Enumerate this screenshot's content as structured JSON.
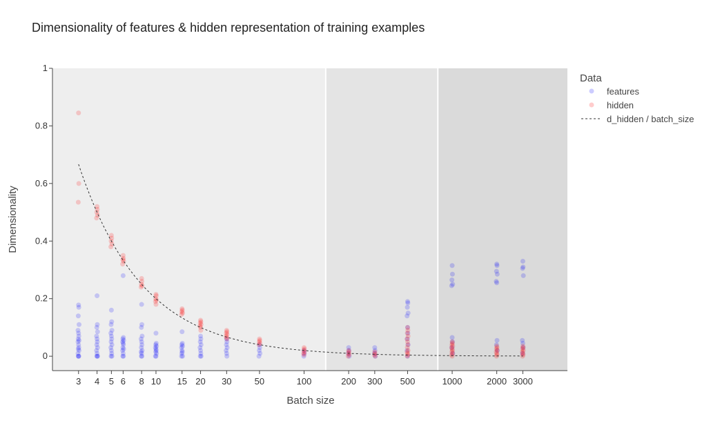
{
  "chart_data": {
    "type": "scatter",
    "title": "Dimensionality of features & hidden representation of training examples",
    "xlabel": "Batch size",
    "ylabel": "Dimensionality",
    "xscale": "log",
    "xlim": [
      2.0,
      6000
    ],
    "ylim": [
      -0.05,
      1.0
    ],
    "xticks": [
      3,
      4,
      5,
      6,
      8,
      10,
      15,
      20,
      30,
      50,
      100,
      200,
      300,
      500,
      1000,
      2000,
      3000
    ],
    "xtick_labels": [
      "3",
      "4",
      "5",
      "6",
      "8",
      "10",
      "15",
      "20",
      "30",
      "50",
      "100",
      "200",
      "300",
      "500",
      "1000",
      "2000",
      "3000"
    ],
    "yticks": [
      0,
      0.2,
      0.4,
      0.6,
      0.8,
      1
    ],
    "ytick_labels": [
      "0",
      "0.2",
      "0.4",
      "0.6",
      "0.8",
      "1"
    ],
    "grid": false,
    "background_regions": [
      {
        "x_from": 2.0,
        "x_to": 140,
        "color": "#eeeeee"
      },
      {
        "x_from": 140,
        "x_to": 800,
        "color": "#e4e4e4"
      },
      {
        "x_from": 800,
        "x_to": 6000,
        "color": "#dadada"
      }
    ],
    "region_boundaries": [
      140,
      800
    ],
    "legend": {
      "title": "Data",
      "placement": "right",
      "entries": [
        "features",
        "hidden",
        "d_hidden / batch_size"
      ]
    },
    "series": [
      {
        "name": "features",
        "mode": "markers",
        "color": "#0000ff",
        "points": [
          {
            "x": 3,
            "y": [
              0.178,
              0.17,
              0.14,
              0.11,
              0.09,
              0.08,
              0.07,
              0.06,
              0.055,
              0.05,
              0.04,
              0.03,
              0.025,
              0.02,
              0.01,
              0.0,
              0.0,
              0.0
            ]
          },
          {
            "x": 4,
            "y": [
              0.21,
              0.11,
              0.1,
              0.085,
              0.07,
              0.06,
              0.05,
              0.04,
              0.03,
              0.02,
              0.01,
              0.0,
              0.0,
              0.0
            ]
          },
          {
            "x": 5,
            "y": [
              0.16,
              0.12,
              0.11,
              0.09,
              0.08,
              0.07,
              0.06,
              0.05,
              0.04,
              0.03,
              0.02,
              0.01,
              0.0,
              0.0
            ]
          },
          {
            "x": 6,
            "y": [
              0.28,
              0.065,
              0.06,
              0.055,
              0.05,
              0.045,
              0.04,
              0.03,
              0.025,
              0.02,
              0.01,
              0.0,
              0.0
            ]
          },
          {
            "x": 8,
            "y": [
              0.18,
              0.11,
              0.1,
              0.07,
              0.06,
              0.05,
              0.04,
              0.03,
              0.02,
              0.015,
              0.01,
              0.0,
              0.0
            ]
          },
          {
            "x": 10,
            "y": [
              0.08,
              0.045,
              0.04,
              0.035,
              0.03,
              0.025,
              0.02,
              0.015,
              0.01,
              0.0,
              0.0
            ]
          },
          {
            "x": 15,
            "y": [
              0.085,
              0.045,
              0.04,
              0.035,
              0.03,
              0.02,
              0.015,
              0.01,
              0.0,
              0.0
            ]
          },
          {
            "x": 20,
            "y": [
              0.07,
              0.06,
              0.05,
              0.04,
              0.03,
              0.02,
              0.01,
              0.0,
              0.0
            ]
          },
          {
            "x": 30,
            "y": [
              0.06,
              0.05,
              0.04,
              0.03,
              0.02,
              0.01,
              0.0
            ]
          },
          {
            "x": 50,
            "y": [
              0.04,
              0.03,
              0.02,
              0.01,
              0.0
            ]
          },
          {
            "x": 100,
            "y": [
              0.02,
              0.01,
              0.0
            ]
          },
          {
            "x": 200,
            "y": [
              0.03,
              0.02,
              0.01,
              0.0
            ]
          },
          {
            "x": 300,
            "y": [
              0.03,
              0.02,
              0.01,
              0.0
            ]
          },
          {
            "x": 500,
            "y": [
              0.19,
              0.185,
              0.17,
              0.15,
              0.14,
              0.1,
              0.08,
              0.06,
              0.04,
              0.02,
              0.0
            ]
          },
          {
            "x": 1000,
            "y": [
              0.315,
              0.285,
              0.265,
              0.25,
              0.245,
              0.065,
              0.05,
              0.03,
              0.01
            ]
          },
          {
            "x": 2000,
            "y": [
              0.32,
              0.315,
              0.295,
              0.285,
              0.26,
              0.255,
              0.055,
              0.04,
              0.02
            ]
          },
          {
            "x": 3000,
            "y": [
              0.33,
              0.31,
              0.305,
              0.28,
              0.055,
              0.045,
              0.03,
              0.01
            ]
          }
        ]
      },
      {
        "name": "hidden",
        "mode": "markers",
        "color": "#ff0000",
        "points": [
          {
            "x": 3,
            "y": [
              0.845,
              0.6,
              0.535
            ]
          },
          {
            "x": 4,
            "y": [
              0.52,
              0.51,
              0.5,
              0.49,
              0.48
            ]
          },
          {
            "x": 5,
            "y": [
              0.42,
              0.41,
              0.4,
              0.39,
              0.38
            ]
          },
          {
            "x": 6,
            "y": [
              0.35,
              0.34,
              0.335,
              0.33,
              0.32
            ]
          },
          {
            "x": 8,
            "y": [
              0.27,
              0.26,
              0.25,
              0.245,
              0.24
            ]
          },
          {
            "x": 10,
            "y": [
              0.215,
              0.21,
              0.2,
              0.195,
              0.19,
              0.18
            ]
          },
          {
            "x": 15,
            "y": [
              0.165,
              0.16,
              0.155,
              0.15,
              0.145
            ]
          },
          {
            "x": 20,
            "y": [
              0.125,
              0.12,
              0.115,
              0.11,
              0.105,
              0.1,
              0.09
            ]
          },
          {
            "x": 30,
            "y": [
              0.09,
              0.085,
              0.08,
              0.075,
              0.07,
              0.065,
              0.06
            ]
          },
          {
            "x": 50,
            "y": [
              0.06,
              0.055,
              0.05,
              0.045,
              0.04
            ]
          },
          {
            "x": 100,
            "y": [
              0.03,
              0.025,
              0.02,
              0.015,
              0.01,
              0.005
            ]
          },
          {
            "x": 200,
            "y": [
              0.02,
              0.015,
              0.01,
              0.005,
              0.0
            ]
          },
          {
            "x": 300,
            "y": [
              0.015,
              0.01,
              0.005,
              0.0
            ]
          },
          {
            "x": 500,
            "y": [
              0.1,
              0.09,
              0.08,
              0.07,
              0.06,
              0.05,
              0.04,
              0.03,
              0.02,
              0.015,
              0.01,
              0.005,
              0.0
            ]
          },
          {
            "x": 1000,
            "y": [
              0.05,
              0.045,
              0.04,
              0.035,
              0.03,
              0.025,
              0.02,
              0.015,
              0.01,
              0.005,
              0.0
            ]
          },
          {
            "x": 2000,
            "y": [
              0.035,
              0.03,
              0.025,
              0.02,
              0.015,
              0.01,
              0.005,
              0.0
            ]
          },
          {
            "x": 3000,
            "y": [
              0.035,
              0.03,
              0.025,
              0.02,
              0.015,
              0.01,
              0.005,
              0.0
            ]
          }
        ]
      },
      {
        "name": "d_hidden / batch_size",
        "mode": "line",
        "dash": "dot",
        "color": "#333333",
        "numerator": 2,
        "x_range": [
          3,
          3000
        ]
      }
    ]
  }
}
